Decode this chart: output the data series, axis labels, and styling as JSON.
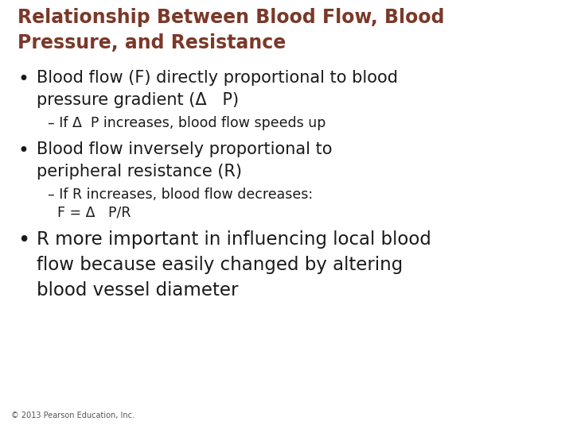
{
  "title_line1": "Relationship Between Blood Flow, Blood",
  "title_line2": "Pressure, and Resistance",
  "title_color": "#7B3828",
  "body_color": "#1a1a1a",
  "background_color": "#ffffff",
  "footer": "© 2013 Pearson Education, Inc.",
  "bullet1_line1": "Blood flow (F) directly proportional to blood",
  "bullet1_line2": "pressure gradient (Δ   P)",
  "sub1": "– If Δ  P increases, blood flow speeds up",
  "bullet2_line1": "Blood flow inversely proportional to",
  "bullet2_line2": "peripheral resistance (R)",
  "sub2_line1": "– If R increases, blood flow decreases:",
  "sub2_line2": "F = Δ   P/R",
  "bullet3_line1": "R more important in influencing local blood",
  "bullet3_line2": "flow because easily changed by altering",
  "bullet3_line3": "blood vessel diameter",
  "title_fontsize": 17,
  "bullet_fontsize": 15,
  "sub_fontsize": 12.5,
  "bullet3_fontsize": 16.5,
  "footer_fontsize": 7
}
